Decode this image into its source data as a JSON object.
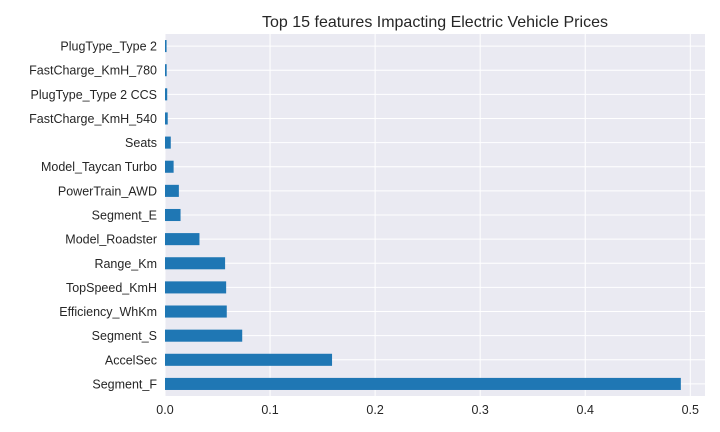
{
  "chart_data": {
    "type": "bar",
    "orientation": "horizontal",
    "title": "Top 15 features Impacting Electric Vehicle Prices",
    "xlabel": "",
    "ylabel": "",
    "xlim": [
      0,
      0.514
    ],
    "xticks": [
      0.0,
      0.1,
      0.2,
      0.3,
      0.4,
      0.5
    ],
    "xtick_labels": [
      "0.0",
      "0.1",
      "0.2",
      "0.3",
      "0.4",
      "0.5"
    ],
    "grid": true,
    "bar_color": "#1f77b4",
    "categories": [
      "PlugType_Type 2",
      "FastCharge_KmH_780",
      "PlugType_Type 2 CCS",
      "FastCharge_KmH_540",
      "Seats",
      "Model_Taycan Turbo",
      "PowerTrain_AWD",
      "Segment_E",
      "Model_Roadster",
      "Range_Km",
      "TopSpeed_KmH",
      "Efficiency_WhKm",
      "Segment_S",
      "AccelSec",
      "Segment_F"
    ],
    "values": [
      0.0015,
      0.0016,
      0.0021,
      0.0026,
      0.0055,
      0.0082,
      0.0132,
      0.0148,
      0.0328,
      0.0572,
      0.0582,
      0.0588,
      0.0735,
      0.159,
      0.491
    ]
  }
}
